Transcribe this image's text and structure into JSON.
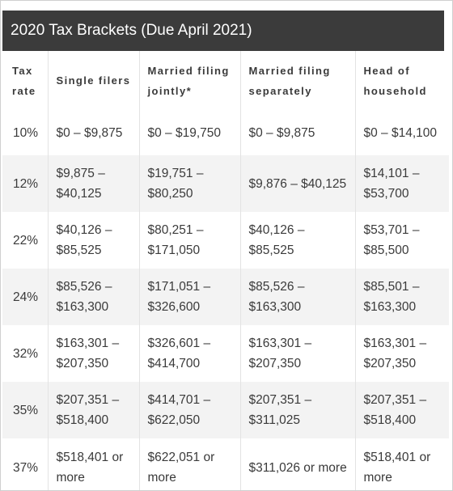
{
  "title": "2020 Tax Brackets (Due April 2021)",
  "columns": [
    "Tax rate",
    "Single filers",
    "Married filing jointly*",
    "Married filing separately",
    "Head of household"
  ],
  "rows": [
    {
      "rate": "10%",
      "single": "$0 – $9,875",
      "joint": "$0 – $19,750",
      "separate": "$0 – $9,875",
      "head": "$0 – $14,100"
    },
    {
      "rate": "12%",
      "single": "$9,875 – $40,125",
      "joint": "$19,751 – $80,250",
      "separate": "$9,876 – $40,125",
      "head": "$14,101 – $53,700"
    },
    {
      "rate": "22%",
      "single": "$40,126 – $85,525",
      "joint": "$80,251 – $171,050",
      "separate": "$40,126 – $85,525",
      "head": "$53,701 – $85,500"
    },
    {
      "rate": "24%",
      "single": "$85,526 – $163,300",
      "joint": "$171,051 – $326,600",
      "separate": "$85,526 – $163,300",
      "head": "$85,501 – $163,300"
    },
    {
      "rate": "32%",
      "single": "$163,301 – $207,350",
      "joint": "$326,601 – $414,700",
      "separate": "$163,301 – $207,350",
      "head": "$163,301 – $207,350"
    },
    {
      "rate": "35%",
      "single": "$207,351 – $518,400",
      "joint": "$414,701 – $622,050",
      "separate": "$207,351 – $311,025",
      "head": "$207,351 – $518,400"
    },
    {
      "rate": "37%",
      "single": "$518,401 or more",
      "joint": "$622,051 or more",
      "separate": "$311,026 or more",
      "head": "$518,401 or more"
    }
  ]
}
